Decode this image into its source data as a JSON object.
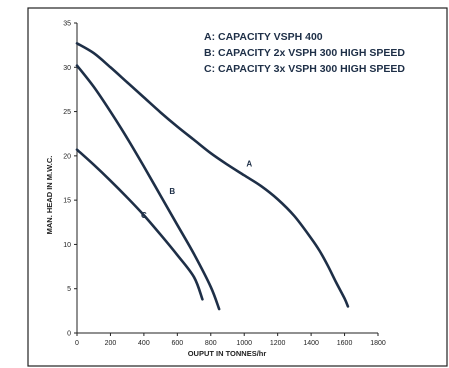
{
  "chart_data": {
    "type": "line",
    "xlabel": "OUPUT IN TONNES/hr",
    "ylabel": "MAN. HEAD IN M.W.C.",
    "xlim": [
      0,
      1800
    ],
    "ylim": [
      0,
      35
    ],
    "x_ticks": [
      "0",
      "200",
      "400",
      "600",
      "800",
      "1000",
      "1200",
      "1400",
      "1600",
      "1800"
    ],
    "y_ticks": [
      "0",
      "5",
      "10",
      "15",
      "20",
      "25",
      "30",
      "35"
    ],
    "legend": [
      "A: CAPACITY VSPH 400",
      "B: CAPACITY 2x VSPH 300 HIGH SPEED",
      "C: CAPACITY 3x VSPH 300 HIGH SPEED"
    ],
    "series": [
      {
        "name": "A",
        "x": [
          0,
          100,
          200,
          300,
          400,
          500,
          600,
          700,
          800,
          900,
          1000,
          1100,
          1200,
          1300,
          1400,
          1450,
          1500,
          1550,
          1600,
          1620
        ],
        "y": [
          32.7,
          31.6,
          30.0,
          28.3,
          26.6,
          24.9,
          23.3,
          21.8,
          20.3,
          19.0,
          17.8,
          16.6,
          15.1,
          13.2,
          10.7,
          9.3,
          7.6,
          5.7,
          3.9,
          3.0
        ]
      },
      {
        "name": "B",
        "x": [
          0,
          100,
          200,
          300,
          400,
          500,
          600,
          700,
          800,
          850
        ],
        "y": [
          30.2,
          27.8,
          25.0,
          22.0,
          18.8,
          15.5,
          12.2,
          8.9,
          5.2,
          2.7
        ]
      },
      {
        "name": "C",
        "x": [
          0,
          100,
          200,
          300,
          400,
          500,
          600,
          700,
          750
        ],
        "y": [
          20.7,
          19.0,
          17.2,
          15.3,
          13.3,
          11.1,
          8.8,
          6.3,
          3.8
        ]
      }
    ],
    "curve_labels": [
      {
        "text": "A",
        "x": 1030,
        "y": 18.8
      },
      {
        "text": "B",
        "x": 570,
        "y": 15.7
      },
      {
        "text": "C",
        "x": 400,
        "y": 13.0
      }
    ],
    "grid": false,
    "legend_position": "top-right"
  }
}
